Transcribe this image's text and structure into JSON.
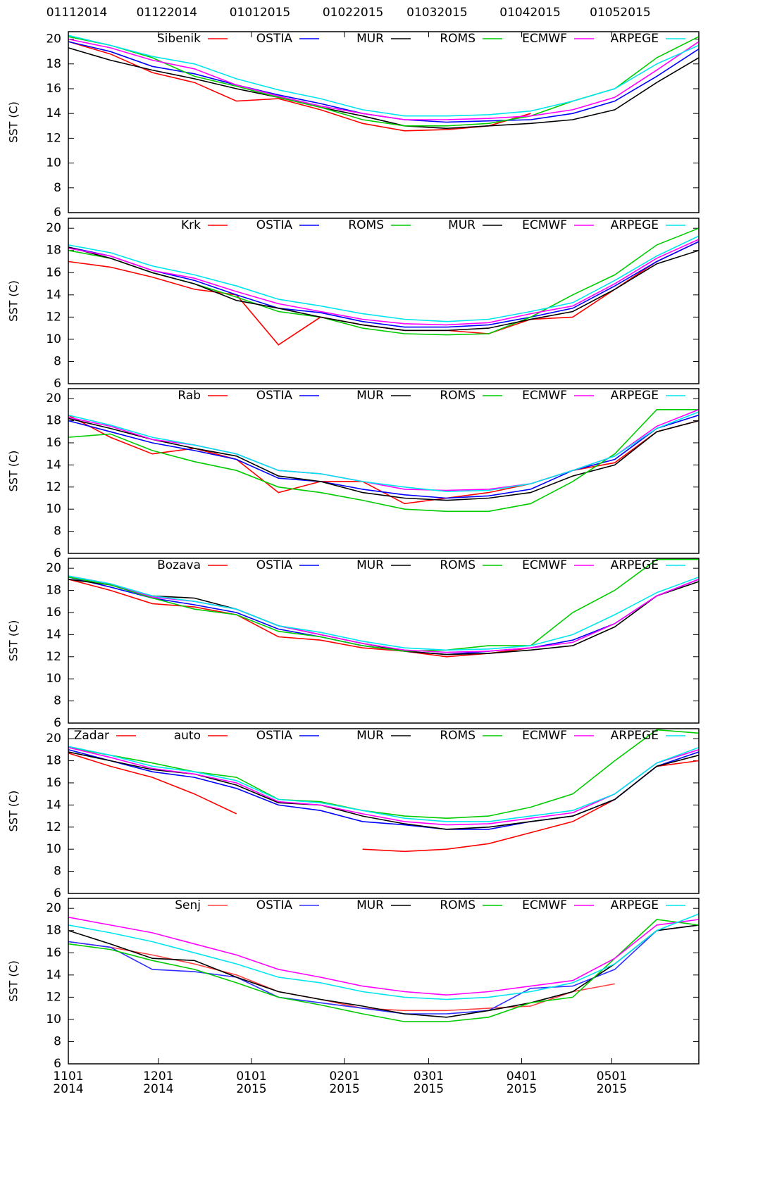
{
  "chart_data": [
    {
      "type": "line",
      "ylabel": "SST (C)",
      "ylim": [
        6,
        20.6
      ],
      "yticks": [
        6,
        8,
        10,
        12,
        14,
        16,
        18,
        20
      ],
      "xlim": [
        "2014-11-01",
        "2015-05-30"
      ],
      "top_xticks": [
        {
          "value": "2014-11-01",
          "label": "01112014"
        },
        {
          "value": "2014-12-01",
          "label": "01122014"
        },
        {
          "value": "2015-01-01",
          "label": "01012015"
        },
        {
          "value": "2015-02-01",
          "label": "01022015"
        },
        {
          "value": "2015-03-01",
          "label": "01032015"
        },
        {
          "value": "2015-04-01",
          "label": "01042015"
        },
        {
          "value": "2015-05-01",
          "label": "01052015"
        }
      ],
      "x": [
        "2014-11-01",
        "2014-11-15",
        "2014-11-29",
        "2014-12-13",
        "2014-12-27",
        "2015-01-10",
        "2015-01-24",
        "2015-02-07",
        "2015-02-21",
        "2015-03-07",
        "2015-03-21",
        "2015-04-04",
        "2015-04-18",
        "2015-05-02",
        "2015-05-16",
        "2015-05-30"
      ],
      "series": [
        {
          "name": "Sibenik",
          "color": "#ff0000",
          "values": [
            19.8,
            18.8,
            17.3,
            16.5,
            15,
            15.2,
            14.3,
            13.2,
            12.6,
            12.7,
            13,
            14,
            null,
            null,
            null,
            null
          ]
        },
        {
          "name": "OSTIA",
          "color": "#0000ff",
          "values": [
            19.8,
            19,
            17.8,
            17.2,
            16.3,
            15.5,
            14.8,
            14,
            13.5,
            13.3,
            13.4,
            13.5,
            14,
            15,
            17,
            19.2
          ]
        },
        {
          "name": "MUR",
          "color": "#000000",
          "values": [
            19.3,
            18.3,
            17.5,
            16.8,
            16,
            15.3,
            14.5,
            13.8,
            13,
            12.8,
            13,
            13.2,
            13.5,
            14.3,
            16.5,
            18.5
          ]
        },
        {
          "name": "ROMS",
          "color": "#00cc00",
          "values": [
            20.2,
            19.5,
            18.5,
            17,
            16.2,
            15.3,
            14.5,
            13.5,
            13,
            13,
            13.2,
            13.8,
            15,
            16,
            18.5,
            20.2
          ]
        },
        {
          "name": "ECMWF",
          "color": "#ff00ff",
          "values": [
            20,
            19.3,
            18.3,
            17.6,
            16.3,
            15.4,
            14.6,
            14,
            13.5,
            13.5,
            13.6,
            13.8,
            14.3,
            15.3,
            17.5,
            19.8
          ]
        },
        {
          "name": "ARPEGE",
          "color": "#00e5ee",
          "values": [
            20.3,
            19.5,
            18.6,
            18,
            16.8,
            15.9,
            15.2,
            14.3,
            13.8,
            13.8,
            13.9,
            14.2,
            15,
            16,
            18,
            19.5
          ]
        }
      ]
    },
    {
      "type": "line",
      "ylabel": "SST (C)",
      "ylim": [
        6,
        20.9
      ],
      "yticks": [
        6,
        8,
        10,
        12,
        14,
        16,
        18,
        20
      ],
      "xlim": [
        "2014-11-01",
        "2015-05-30"
      ],
      "x": [
        "2014-11-01",
        "2014-11-15",
        "2014-11-29",
        "2014-12-13",
        "2014-12-27",
        "2015-01-10",
        "2015-01-24",
        "2015-02-07",
        "2015-02-21",
        "2015-03-07",
        "2015-03-21",
        "2015-04-04",
        "2015-04-18",
        "2015-05-02",
        "2015-05-16",
        "2015-05-30"
      ],
      "series": [
        {
          "name": "Krk",
          "color": "#ff0000",
          "values": [
            17,
            16.5,
            15.6,
            14.5,
            14,
            9.5,
            12,
            11.3,
            10.8,
            10.8,
            10.5,
            11.8,
            12,
            14.5,
            17,
            18.8
          ]
        },
        {
          "name": "OSTIA",
          "color": "#0000ff",
          "values": [
            18.3,
            17.5,
            16.2,
            15.3,
            14,
            12.8,
            12.4,
            11.6,
            11.1,
            11.1,
            11.3,
            12,
            12.8,
            14.8,
            17,
            18.8
          ]
        },
        {
          "name": "ROMS",
          "color": "#00cc00",
          "values": [
            18,
            17.3,
            16,
            15,
            13.8,
            12.5,
            12,
            11,
            10.5,
            10.4,
            10.5,
            12,
            14,
            15.8,
            18.5,
            20
          ]
        },
        {
          "name": "MUR",
          "color": "#000000",
          "values": [
            18.3,
            17.3,
            16,
            15,
            13.5,
            12.8,
            12,
            11.3,
            10.8,
            10.8,
            11,
            11.8,
            12.5,
            14.5,
            16.8,
            18
          ]
        },
        {
          "name": "ECMWF",
          "color": "#ff00ff",
          "values": [
            18.2,
            17.5,
            16.2,
            15.5,
            14.3,
            13.2,
            12.5,
            11.8,
            11.4,
            11.3,
            11.5,
            12.3,
            13,
            15,
            17.3,
            19
          ]
        },
        {
          "name": "ARPEGE",
          "color": "#00e5ee",
          "values": [
            18.5,
            17.8,
            16.6,
            15.8,
            14.8,
            13.6,
            13,
            12.3,
            11.8,
            11.6,
            11.8,
            12.5,
            13.3,
            15.3,
            17.5,
            19.3
          ]
        }
      ]
    },
    {
      "type": "line",
      "ylabel": "SST (C)",
      "ylim": [
        6,
        20.9
      ],
      "yticks": [
        6,
        8,
        10,
        12,
        14,
        16,
        18,
        20
      ],
      "xlim": [
        "2014-11-01",
        "2015-05-30"
      ],
      "x": [
        "2014-11-01",
        "2014-11-15",
        "2014-11-29",
        "2014-12-13",
        "2014-12-27",
        "2015-01-10",
        "2015-01-24",
        "2015-02-07",
        "2015-02-21",
        "2015-03-07",
        "2015-03-21",
        "2015-04-04",
        "2015-04-18",
        "2015-05-02",
        "2015-05-16",
        "2015-05-30"
      ],
      "series": [
        {
          "name": "Rab",
          "color": "#ff0000",
          "values": [
            18.5,
            16.5,
            15,
            15.5,
            14.5,
            11.5,
            12.5,
            12.5,
            10.5,
            11,
            11.5,
            12.3,
            13.5,
            14.2,
            17,
            18
          ]
        },
        {
          "name": "OSTIA",
          "color": "#0000ff",
          "values": [
            18,
            17,
            16,
            15.3,
            14.5,
            12.8,
            12.5,
            11.8,
            11.3,
            11,
            11.2,
            11.8,
            13.5,
            14.5,
            17.3,
            18.5
          ]
        },
        {
          "name": "MUR",
          "color": "#000000",
          "values": [
            18.2,
            17.3,
            16.3,
            15.5,
            14.8,
            13,
            12.5,
            11.5,
            11,
            10.8,
            11,
            11.5,
            13,
            14,
            17,
            18
          ]
        },
        {
          "name": "ROMS",
          "color": "#00cc00",
          "values": [
            16.5,
            16.8,
            15.3,
            14.3,
            13.5,
            12,
            11.5,
            10.8,
            10,
            9.8,
            9.8,
            10.5,
            12.5,
            15,
            19,
            19
          ]
        },
        {
          "name": "ECMWF",
          "color": "#ff00ff",
          "values": [
            18.3,
            17.5,
            16.3,
            15.8,
            15,
            13.5,
            13.2,
            12.5,
            11.8,
            11.7,
            11.8,
            12.3,
            13.5,
            14.8,
            17.5,
            19
          ]
        },
        {
          "name": "ARPEGE",
          "color": "#00e5ee",
          "values": [
            18.5,
            17.6,
            16.5,
            15.8,
            15,
            13.5,
            13.2,
            12.5,
            12,
            11.6,
            11.7,
            12.3,
            13.5,
            14.8,
            17.3,
            18.8
          ]
        }
      ]
    },
    {
      "type": "line",
      "ylabel": "SST (C)",
      "ylim": [
        6,
        20.9
      ],
      "yticks": [
        6,
        8,
        10,
        12,
        14,
        16,
        18,
        20
      ],
      "xlim": [
        "2014-11-01",
        "2015-05-30"
      ],
      "x": [
        "2014-11-01",
        "2014-11-15",
        "2014-11-29",
        "2014-12-13",
        "2014-12-27",
        "2015-01-10",
        "2015-01-24",
        "2015-02-07",
        "2015-02-21",
        "2015-03-07",
        "2015-03-21",
        "2015-04-04",
        "2015-04-18",
        "2015-05-02",
        "2015-05-16",
        "2015-05-30"
      ],
      "series": [
        {
          "name": "Bozava",
          "color": "#ff0000",
          "values": [
            19,
            18,
            16.8,
            16.5,
            15.8,
            13.8,
            13.5,
            12.8,
            12.5,
            12,
            12.3,
            12.8,
            null,
            null,
            null,
            null
          ]
        },
        {
          "name": "OSTIA",
          "color": "#0000ff",
          "values": [
            19.2,
            18.3,
            17.3,
            16.7,
            16,
            14.5,
            13.8,
            13,
            12.5,
            12.2,
            12.5,
            12.8,
            13.5,
            15,
            17.5,
            19
          ]
        },
        {
          "name": "MUR",
          "color": "#000000",
          "values": [
            19,
            18.5,
            17.5,
            17.3,
            16.3,
            14.8,
            14,
            13.2,
            12.5,
            12.2,
            12.3,
            12.6,
            13,
            14.7,
            17.5,
            18.8
          ]
        },
        {
          "name": "ROMS",
          "color": "#00cc00",
          "values": [
            19.2,
            18.5,
            17.3,
            16.3,
            15.8,
            14.3,
            13.8,
            13,
            12.5,
            12.6,
            13,
            13,
            16,
            18,
            20.8,
            20.8
          ]
        },
        {
          "name": "ECMWF",
          "color": "#ff00ff",
          "values": [
            19.3,
            18.6,
            17.4,
            17,
            16.3,
            14.8,
            14,
            13.2,
            12.6,
            12.4,
            12.5,
            12.8,
            13.3,
            15,
            17.5,
            19
          ]
        },
        {
          "name": "ARPEGE",
          "color": "#00e5ee",
          "values": [
            19.3,
            18.6,
            17.5,
            17,
            16.3,
            14.8,
            14.2,
            13.4,
            12.8,
            12.6,
            12.7,
            13,
            14,
            15.8,
            17.8,
            19.2
          ]
        }
      ]
    },
    {
      "type": "line",
      "ylabel": "SST (C)",
      "ylim": [
        6,
        20.9
      ],
      "yticks": [
        6,
        8,
        10,
        12,
        14,
        16,
        18,
        20
      ],
      "xlim": [
        "2014-11-01",
        "2015-05-30"
      ],
      "x": [
        "2014-11-01",
        "2014-11-15",
        "2014-11-29",
        "2014-12-13",
        "2014-12-27",
        "2015-01-10",
        "2015-01-24",
        "2015-02-07",
        "2015-02-21",
        "2015-03-07",
        "2015-03-21",
        "2015-04-04",
        "2015-04-18",
        "2015-05-02",
        "2015-05-16",
        "2015-05-30"
      ],
      "series": [
        {
          "name": "Zadar",
          "color": "#ff0000",
          "values": [
            18.7,
            17.5,
            16.5,
            15,
            13.2,
            null,
            null,
            null,
            null,
            null,
            null,
            null,
            null,
            null,
            null,
            null
          ]
        },
        {
          "name": "auto",
          "color": "#ff0000",
          "values": [
            null,
            null,
            null,
            null,
            null,
            null,
            null,
            10,
            9.8,
            10,
            10.5,
            11.5,
            12.5,
            14.5,
            17.5,
            18
          ]
        },
        {
          "name": "OSTIA",
          "color": "#0000ff",
          "values": [
            19,
            18,
            17,
            16.5,
            15.5,
            14,
            13.5,
            12.5,
            12.2,
            11.8,
            11.8,
            12.5,
            13,
            14.5,
            17.5,
            18.8
          ]
        },
        {
          "name": "MUR",
          "color": "#000000",
          "values": [
            18.8,
            18,
            17.2,
            16.8,
            15.8,
            14.2,
            14,
            13,
            12.3,
            11.8,
            12,
            12.5,
            13,
            14.5,
            17.5,
            18.5
          ]
        },
        {
          "name": "ROMS",
          "color": "#00cc00",
          "values": [
            19.2,
            18.5,
            17.8,
            17,
            16.5,
            14.5,
            14.3,
            13.5,
            13,
            12.8,
            13,
            13.8,
            15,
            18,
            20.8,
            20.5
          ]
        },
        {
          "name": "ECMWF",
          "color": "#ff00ff",
          "values": [
            19.2,
            18.3,
            17.3,
            16.8,
            16,
            14.3,
            14,
            13.2,
            12.5,
            12.2,
            12.3,
            12.8,
            13.3,
            15,
            17.8,
            19
          ]
        },
        {
          "name": "ARPEGE",
          "color": "#00e5ee",
          "values": [
            19.3,
            18.5,
            17.5,
            17,
            16.2,
            14.5,
            14.2,
            13.5,
            12.8,
            12.5,
            12.5,
            13,
            13.5,
            15,
            17.8,
            19.2
          ]
        }
      ]
    },
    {
      "type": "line",
      "ylabel": "SST (C)",
      "ylim": [
        6,
        20.9
      ],
      "yticks": [
        6,
        8,
        10,
        12,
        14,
        16,
        18,
        20
      ],
      "xlim": [
        "2014-11-01",
        "2015-05-30"
      ],
      "xticks": [
        {
          "value": "2014-11-01",
          "label": "1101\n2014"
        },
        {
          "value": "2014-12-01",
          "label": "1201\n2014"
        },
        {
          "value": "2015-01-01",
          "label": "0101\n2015"
        },
        {
          "value": "2015-02-01",
          "label": "0201\n2015"
        },
        {
          "value": "2015-03-01",
          "label": "0301\n2015"
        },
        {
          "value": "2015-04-01",
          "label": "0401\n2015"
        },
        {
          "value": "2015-05-01",
          "label": "0501\n2015"
        }
      ],
      "x": [
        "2014-11-01",
        "2014-11-15",
        "2014-11-29",
        "2014-12-13",
        "2014-12-27",
        "2015-01-10",
        "2015-01-24",
        "2015-02-07",
        "2015-02-21",
        "2015-03-07",
        "2015-03-21",
        "2015-04-04",
        "2015-04-18",
        "2015-05-02",
        "2015-05-16",
        "2015-05-30"
      ],
      "series": [
        {
          "name": "Senj",
          "color": "#ff4040",
          "values": [
            17,
            16.5,
            15.8,
            15,
            14,
            12.5,
            11.8,
            11,
            10.8,
            10.8,
            11,
            11.2,
            12.5,
            13.2,
            null,
            null
          ]
        },
        {
          "name": "OSTIA",
          "color": "#3030ff",
          "values": [
            17,
            16.5,
            14.5,
            14.3,
            13.8,
            12,
            11.5,
            11,
            10.5,
            10.5,
            10.8,
            12.8,
            13,
            14.5,
            18,
            18.5
          ]
        },
        {
          "name": "MUR",
          "color": "#000000",
          "values": [
            18,
            16.8,
            15.5,
            15.3,
            13.8,
            12.5,
            11.8,
            11.2,
            10.5,
            10.2,
            10.8,
            11.5,
            12.5,
            15,
            18,
            18.5
          ]
        },
        {
          "name": "ROMS",
          "color": "#00cc00",
          "values": [
            16.8,
            16.3,
            15.3,
            14.5,
            13.3,
            12,
            11.3,
            10.5,
            9.8,
            9.8,
            10.2,
            11.5,
            12,
            15.5,
            19,
            18.5
          ]
        },
        {
          "name": "ECMWF",
          "color": "#ff00ff",
          "values": [
            19.2,
            18.5,
            17.8,
            16.8,
            15.8,
            14.5,
            13.8,
            13,
            12.5,
            12.2,
            12.5,
            13,
            13.5,
            15.5,
            18.5,
            19
          ]
        },
        {
          "name": "ARPEGE",
          "color": "#00e5ee",
          "values": [
            18.5,
            17.8,
            17,
            16,
            15,
            13.8,
            13.3,
            12.5,
            12,
            11.8,
            12,
            12.5,
            13.3,
            15,
            18,
            19.5
          ]
        }
      ]
    }
  ]
}
